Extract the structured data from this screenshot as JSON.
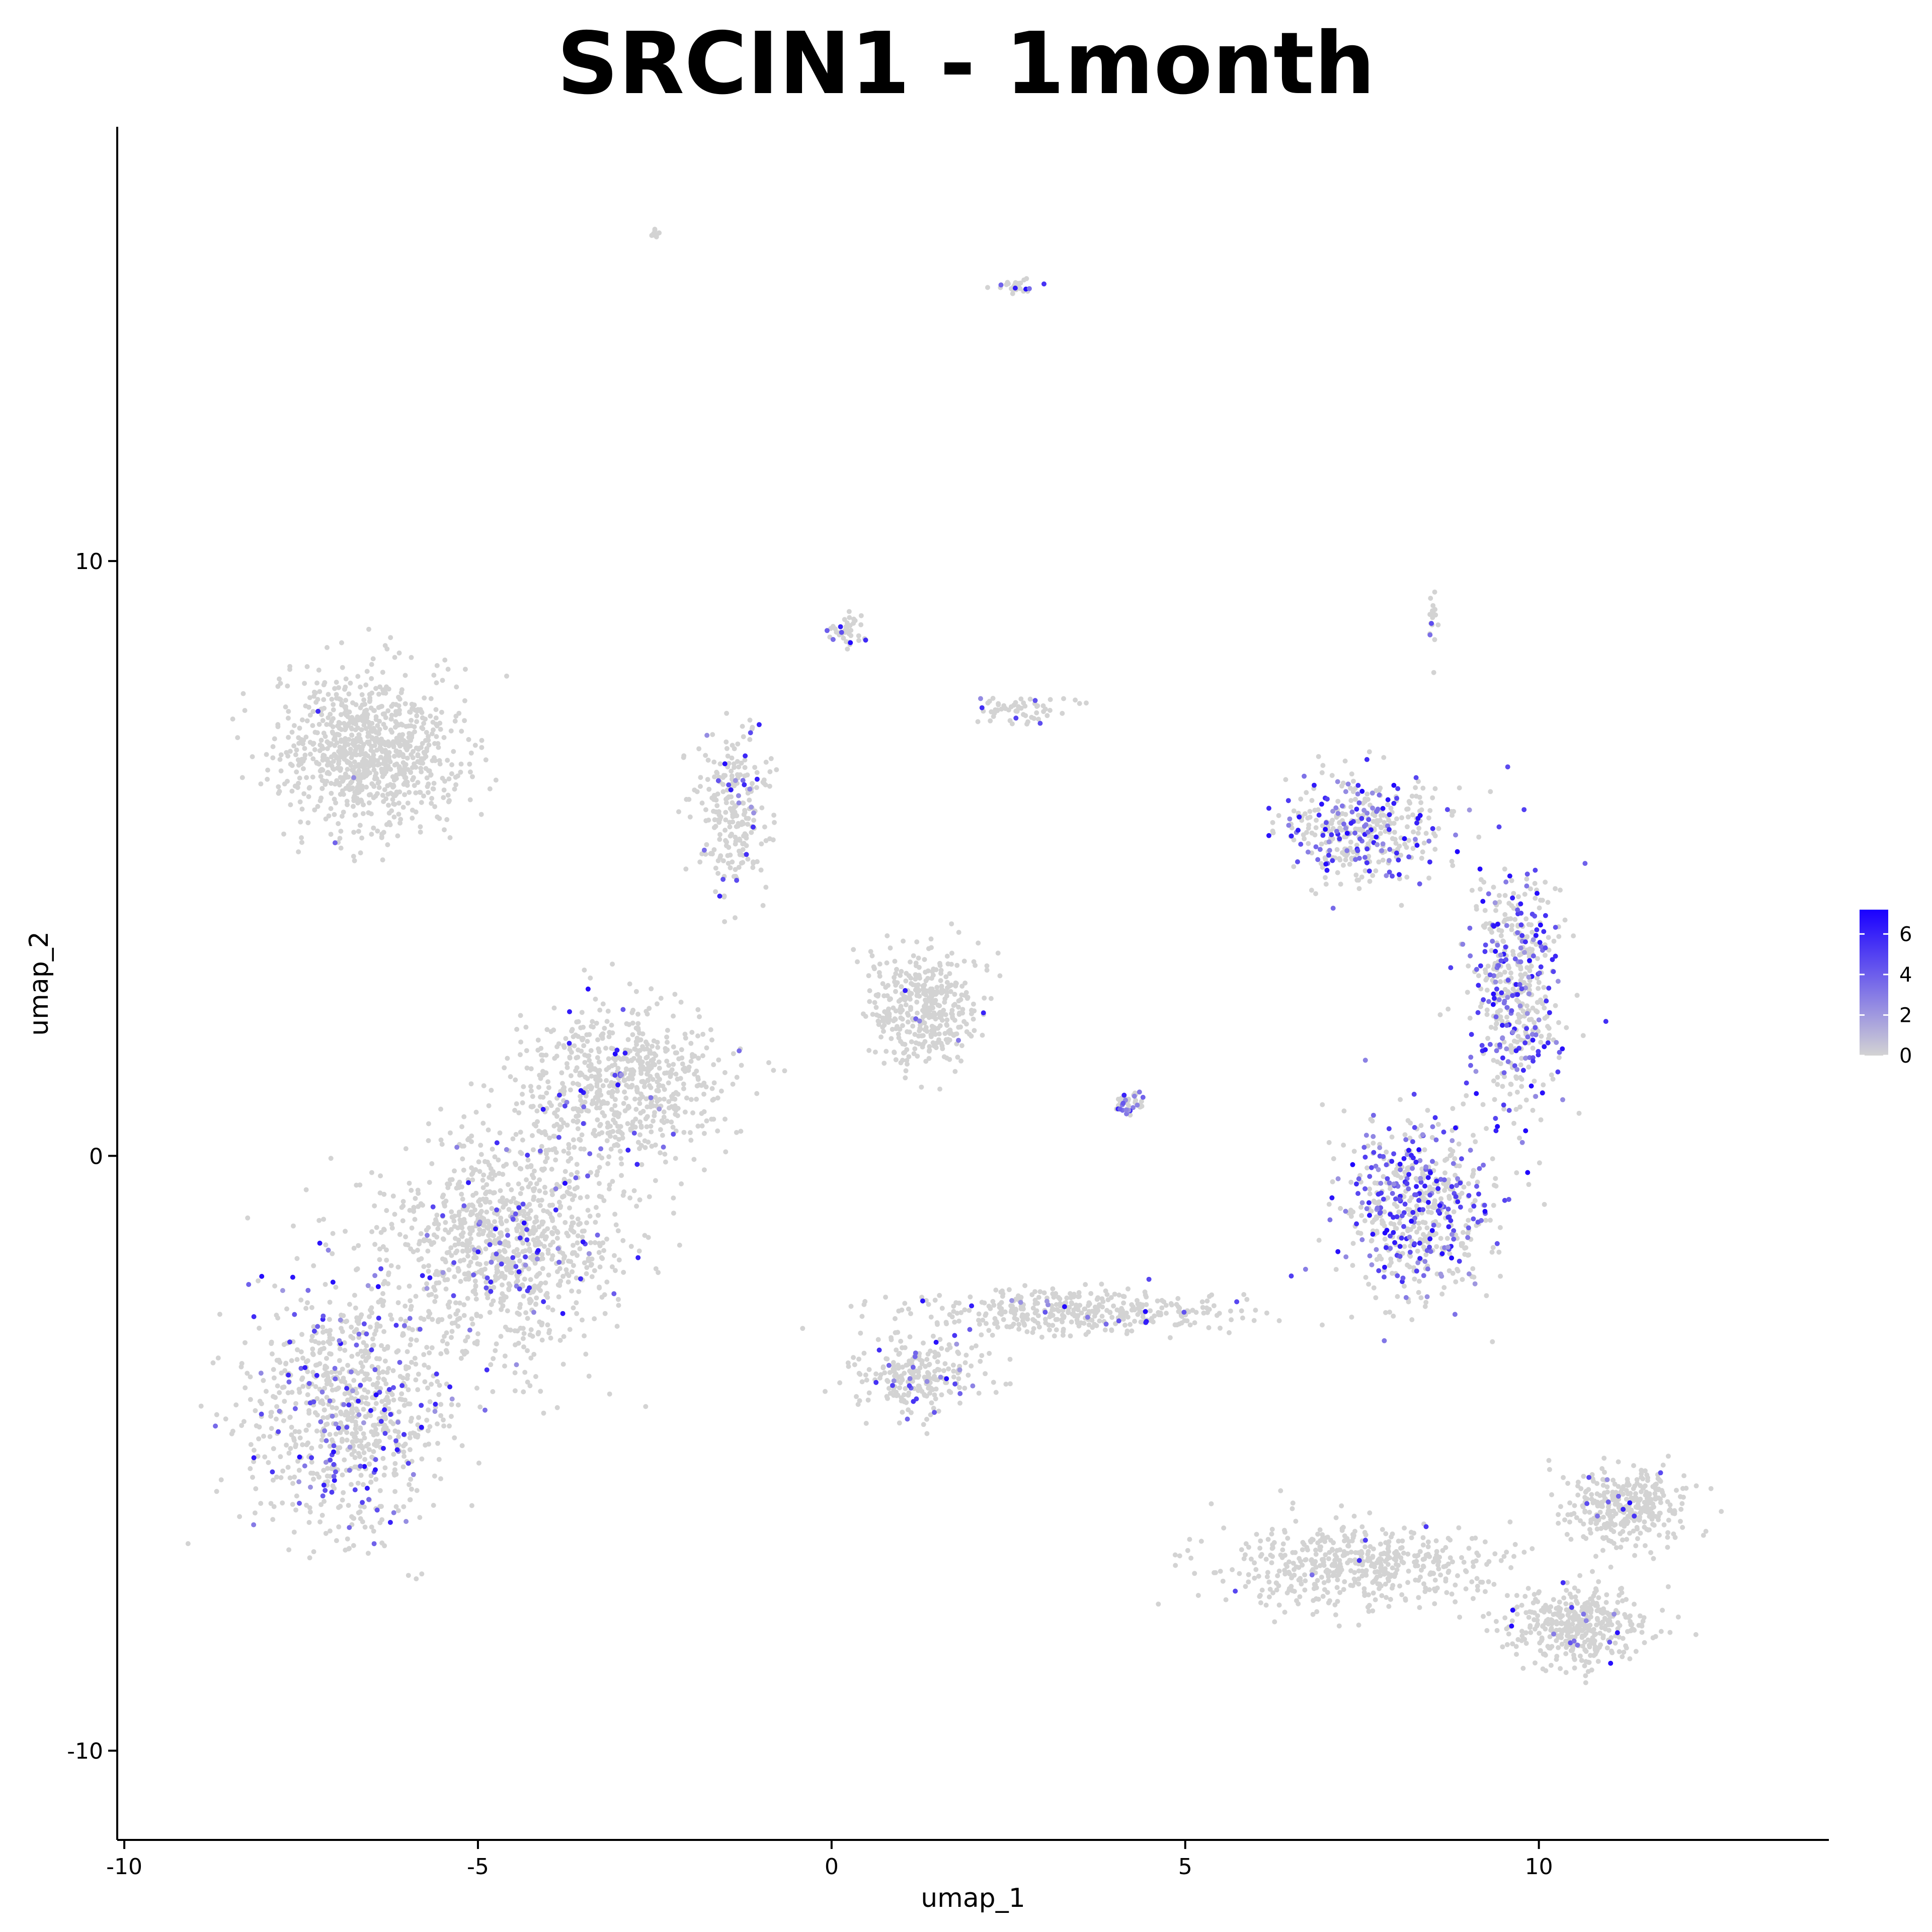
{
  "chart_data": {
    "type": "scatter",
    "title": "SRCIN1 - 1month",
    "xlabel": "umap_1",
    "ylabel": "umap_2",
    "xlim": [
      -10.1,
      14.1
    ],
    "ylim": [
      -11.5,
      17.3
    ],
    "x_ticks": [
      -10,
      -5,
      0,
      5,
      10
    ],
    "x_tick_labels": [
      "-10",
      "-5",
      "0",
      "5",
      "10"
    ],
    "y_ticks": [
      -10,
      0,
      10
    ],
    "y_tick_labels": [
      "-10",
      "0",
      "10"
    ],
    "color_scale": {
      "low_color": "#d3d3d3",
      "high_color": "#1a00ff",
      "min": 0,
      "max": 7.2,
      "ticks": [
        0,
        2,
        4,
        6
      ],
      "tick_labels": [
        "0",
        "2",
        "4",
        "6"
      ]
    },
    "clusters": [
      {
        "center": [
          -6.5,
          6.8
        ],
        "spread": [
          1.15,
          1.2
        ],
        "n": 900,
        "expr_rate": 0.01
      },
      {
        "center": [
          -6.8,
          -4.2
        ],
        "spread": [
          1.3,
          2.0
        ],
        "n": 900,
        "expr_rate": 0.18
      },
      {
        "center": [
          -4.6,
          -1.5
        ],
        "spread": [
          1.5,
          1.6
        ],
        "n": 1000,
        "expr_rate": 0.08
      },
      {
        "center": [
          -3.0,
          1.2
        ],
        "spread": [
          1.3,
          1.2
        ],
        "n": 700,
        "expr_rate": 0.04
      },
      {
        "center": [
          -1.4,
          5.8
        ],
        "spread": [
          0.45,
          1.2
        ],
        "n": 250,
        "expr_rate": 0.12
      },
      {
        "center": [
          1.3,
          2.5
        ],
        "spread": [
          0.7,
          0.9
        ],
        "n": 400,
        "expr_rate": 0.01
      },
      {
        "center": [
          7.5,
          5.5
        ],
        "spread": [
          1.0,
          0.8
        ],
        "n": 400,
        "expr_rate": 0.3
      },
      {
        "center": [
          9.7,
          2.8
        ],
        "spread": [
          0.6,
          1.8
        ],
        "n": 500,
        "expr_rate": 0.35
      },
      {
        "center": [
          8.3,
          -0.9
        ],
        "spread": [
          1.0,
          1.3
        ],
        "n": 600,
        "expr_rate": 0.35
      },
      {
        "center": [
          3.5,
          -2.6
        ],
        "spread": [
          2.2,
          0.35
        ],
        "n": 400,
        "expr_rate": 0.05
      },
      {
        "center": [
          1.2,
          -3.7
        ],
        "spread": [
          0.8,
          0.6
        ],
        "n": 250,
        "expr_rate": 0.1
      },
      {
        "center": [
          7.5,
          -6.9
        ],
        "spread": [
          1.8,
          0.6
        ],
        "n": 500,
        "expr_rate": 0.01
      },
      {
        "center": [
          10.6,
          -7.9
        ],
        "spread": [
          0.9,
          0.6
        ],
        "n": 400,
        "expr_rate": 0.03
      },
      {
        "center": [
          11.2,
          -5.9
        ],
        "spread": [
          0.8,
          0.6
        ],
        "n": 350,
        "expr_rate": 0.03
      },
      {
        "center": [
          0.2,
          8.8
        ],
        "spread": [
          0.25,
          0.25
        ],
        "n": 40,
        "expr_rate": 0.1
      },
      {
        "center": [
          2.7,
          7.5
        ],
        "spread": [
          0.8,
          0.2
        ],
        "n": 60,
        "expr_rate": 0.05
      },
      {
        "center": [
          4.2,
          0.9
        ],
        "spread": [
          0.2,
          0.15
        ],
        "n": 40,
        "expr_rate": 0.3
      },
      {
        "center": [
          2.6,
          14.6
        ],
        "spread": [
          0.25,
          0.1
        ],
        "n": 30,
        "expr_rate": 0.1
      },
      {
        "center": [
          -2.5,
          15.5
        ],
        "spread": [
          0.06,
          0.06
        ],
        "n": 10,
        "expr_rate": 0.0
      },
      {
        "center": [
          8.5,
          9.0
        ],
        "spread": [
          0.06,
          0.4
        ],
        "n": 20,
        "expr_rate": 0.2
      }
    ]
  }
}
